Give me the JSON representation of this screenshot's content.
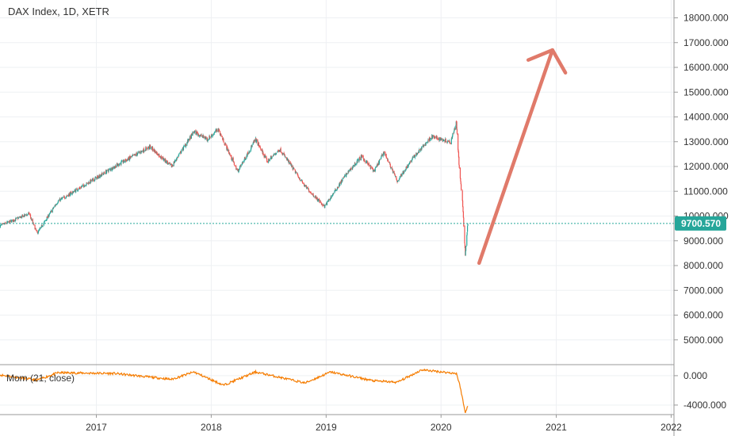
{
  "chart_data": {
    "type": "candlestick",
    "title": "DAX Index, 1D, XETR",
    "colors": {
      "up": "#26a69a",
      "down": "#ef5350",
      "current_line": "#26a69a",
      "price_badge": "#26a69a",
      "arrow": "#e07a6a",
      "momentum": "#f57c00"
    },
    "x_axis": {
      "tick_labels": [
        "2017",
        "2018",
        "2019",
        "2020",
        "2021",
        "2022"
      ],
      "range": [
        "2016-03-01",
        "2022-01-10"
      ]
    },
    "price_panel": {
      "y_ticks": [
        "18000.000",
        "17000.000",
        "16000.000",
        "15000.000",
        "14000.000",
        "13000.000",
        "12000.000",
        "11000.000",
        "10000.000",
        "9000.000",
        "8000.000",
        "7000.000",
        "6000.000",
        "5000.000"
      ],
      "ylim": [
        4000,
        18400
      ],
      "current_value": 9700.57,
      "current_label": "9700.570",
      "trend_path": [
        {
          "date": "2016-03-01",
          "value": 9600
        },
        {
          "date": "2016-06-01",
          "value": 10100
        },
        {
          "date": "2016-06-27",
          "value": 9300
        },
        {
          "date": "2016-09-01",
          "value": 10600
        },
        {
          "date": "2016-12-01",
          "value": 11300
        },
        {
          "date": "2017-03-01",
          "value": 12000
        },
        {
          "date": "2017-06-20",
          "value": 12800
        },
        {
          "date": "2017-08-28",
          "value": 12000
        },
        {
          "date": "2017-11-07",
          "value": 13400
        },
        {
          "date": "2017-12-20",
          "value": 13100
        },
        {
          "date": "2018-01-23",
          "value": 13500
        },
        {
          "date": "2018-03-26",
          "value": 11800
        },
        {
          "date": "2018-05-22",
          "value": 13100
        },
        {
          "date": "2018-06-28",
          "value": 12200
        },
        {
          "date": "2018-08-07",
          "value": 12700
        },
        {
          "date": "2018-10-26",
          "value": 11200
        },
        {
          "date": "2018-12-27",
          "value": 10380
        },
        {
          "date": "2019-03-01",
          "value": 11600
        },
        {
          "date": "2019-04-23",
          "value": 12400
        },
        {
          "date": "2019-06-03",
          "value": 11800
        },
        {
          "date": "2019-07-04",
          "value": 12600
        },
        {
          "date": "2019-08-15",
          "value": 11400
        },
        {
          "date": "2019-10-01",
          "value": 12300
        },
        {
          "date": "2019-12-02",
          "value": 13200
        },
        {
          "date": "2020-01-31",
          "value": 13000
        },
        {
          "date": "2020-02-19",
          "value": 13790
        },
        {
          "date": "2020-02-28",
          "value": 11900
        },
        {
          "date": "2020-03-09",
          "value": 10600
        },
        {
          "date": "2020-03-18",
          "value": 8440
        },
        {
          "date": "2020-03-26",
          "value": 9700
        }
      ],
      "projection_arrow": {
        "from": {
          "date": "2020-05-01",
          "value": 8100
        },
        "to": {
          "date": "2020-12-20",
          "value": 16700
        }
      }
    },
    "momentum_panel": {
      "label": "Mom (21, close)",
      "y_ticks": [
        "0.000",
        "-4000.000"
      ],
      "ylim": [
        -5300,
        1500
      ],
      "series": [
        {
          "date": "2016-03-01",
          "value": 100
        },
        {
          "date": "2016-06-27",
          "value": -600
        },
        {
          "date": "2016-09-01",
          "value": 400
        },
        {
          "date": "2017-03-01",
          "value": 300
        },
        {
          "date": "2017-08-28",
          "value": -500
        },
        {
          "date": "2017-11-07",
          "value": 500
        },
        {
          "date": "2018-02-09",
          "value": -1300
        },
        {
          "date": "2018-05-22",
          "value": 500
        },
        {
          "date": "2018-10-26",
          "value": -1000
        },
        {
          "date": "2019-01-15",
          "value": 500
        },
        {
          "date": "2019-05-31",
          "value": -700
        },
        {
          "date": "2019-08-15",
          "value": -900
        },
        {
          "date": "2019-11-01",
          "value": 800
        },
        {
          "date": "2020-02-19",
          "value": 300
        },
        {
          "date": "2020-03-02",
          "value": -1500
        },
        {
          "date": "2020-03-18",
          "value": -5100
        },
        {
          "date": "2020-03-26",
          "value": -4000
        }
      ]
    }
  }
}
